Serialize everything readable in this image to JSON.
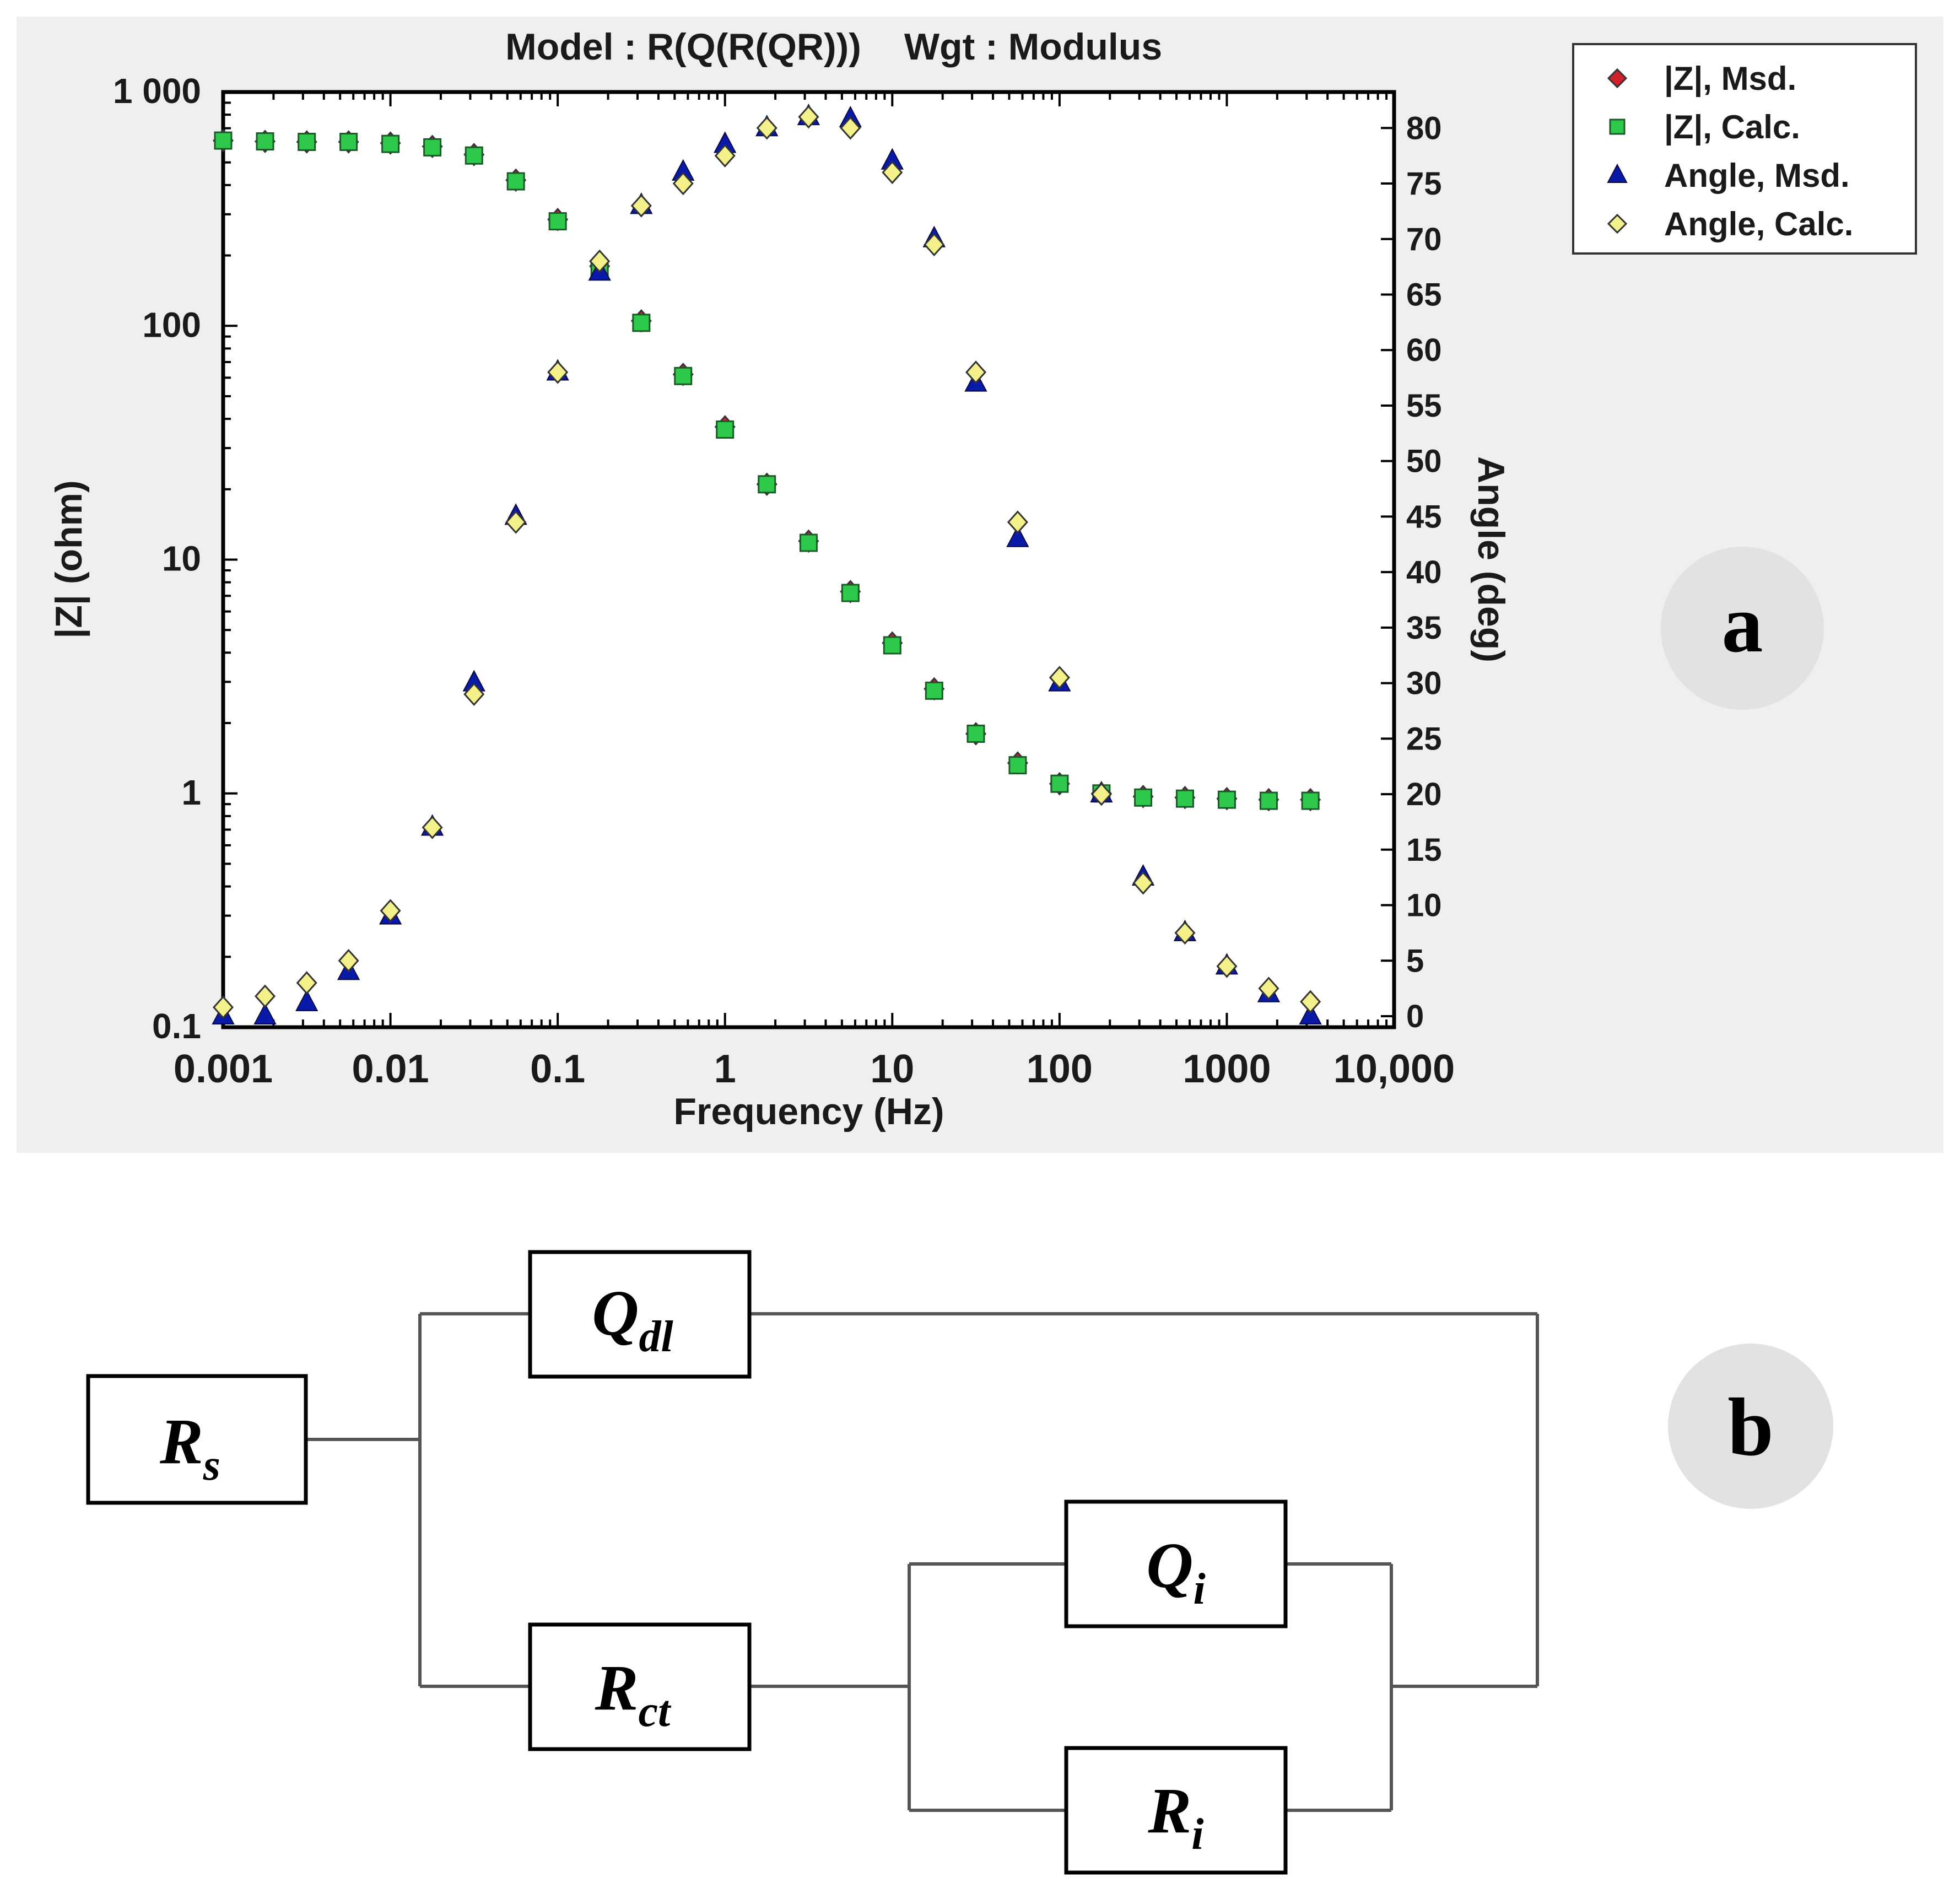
{
  "panel_a": {
    "label": "a",
    "model_text": "Model : R(Q(R(QR)))",
    "weight_text": "Wgt : Modulus",
    "legend": [
      {
        "label": "|Z|,  Msd.",
        "marker": "diamond",
        "color": "#d0202a"
      },
      {
        "label": "|Z|,  Calc.",
        "marker": "square",
        "color": "#2ec94a"
      },
      {
        "label": "Angle,  Msd.",
        "marker": "triangle",
        "color": "#0a1aa8"
      },
      {
        "label": "Angle,  Calc.",
        "marker": "diamond",
        "color": "#f4f08a"
      }
    ],
    "colors": {
      "plot_bg": "#ffffff",
      "panel_bg": "#efefef",
      "z_msd": "#d0202a",
      "z_calc": "#2ec94a",
      "angle_msd": "#0a1aa8",
      "angle_calc": "#f4f08a"
    }
  },
  "chart_data": {
    "type": "scatter",
    "xlabel": "Frequency  (Hz)",
    "ylabel": "|Z|  (ohm)",
    "y2label": "Angle  (deg)",
    "xscale": "log",
    "yscale": "log",
    "xlim": [
      0.001,
      10000
    ],
    "ylim": [
      0.1,
      1000
    ],
    "y2lim": [
      0,
      82
    ],
    "grid": false,
    "legend_position": "top-right (outside plot)",
    "x_tick_labels": [
      "0.001",
      "0.01",
      "0.1",
      "1",
      "10",
      "100",
      "1000",
      "10,000"
    ],
    "x_ticks": [
      0.001,
      0.01,
      0.1,
      1,
      10,
      100,
      1000,
      10000
    ],
    "y_tick_labels": [
      "0.1",
      "1",
      "10",
      "100",
      "1 000"
    ],
    "y_ticks": [
      0.1,
      1,
      10,
      100,
      1000
    ],
    "y2_ticks": [
      0,
      5,
      10,
      15,
      20,
      25,
      30,
      35,
      40,
      45,
      50,
      55,
      60,
      65,
      70,
      75,
      80
    ],
    "x": [
      0.001,
      0.00178,
      0.00316,
      0.00562,
      0.01,
      0.0178,
      0.0316,
      0.0562,
      0.1,
      0.178,
      0.316,
      0.562,
      1.0,
      1.78,
      3.16,
      5.62,
      10.0,
      17.8,
      31.6,
      56.2,
      100,
      178,
      316,
      562,
      1000,
      1780,
      3160
    ],
    "series": [
      {
        "name": "|Z|,  Msd.",
        "axis": "left",
        "values": [
          620,
          615,
          612,
          612,
          605,
          585,
          540,
          420,
          285,
          180,
          105,
          62,
          37,
          21,
          12,
          7.3,
          4.4,
          2.8,
          1.8,
          1.35,
          1.1,
          1.0,
          0.97,
          0.96,
          0.95,
          0.94,
          0.94
        ]
      },
      {
        "name": "|Z|,  Calc.",
        "axis": "left",
        "values": [
          620,
          615,
          612,
          612,
          600,
          580,
          535,
          415,
          280,
          175,
          103,
          61,
          36,
          21,
          11.8,
          7.2,
          4.3,
          2.75,
          1.8,
          1.32,
          1.1,
          1.0,
          0.96,
          0.95,
          0.94,
          0.93,
          0.93
        ]
      },
      {
        "name": "Angle,  Msd.",
        "axis": "right",
        "values": [
          0,
          0,
          1.2,
          4,
          9,
          17,
          30,
          45,
          58,
          67,
          73,
          76,
          78.5,
          80,
          81,
          80.8,
          77,
          70,
          57,
          43,
          30,
          20,
          12.5,
          7.5,
          4.5,
          2,
          0
        ]
      },
      {
        "name": "Angle,  Calc.",
        "axis": "right",
        "values": [
          0.8,
          1.8,
          3,
          5,
          9.5,
          17,
          29,
          44.5,
          58,
          68,
          73,
          75,
          77.5,
          80,
          81,
          80,
          76,
          69.5,
          58,
          44.5,
          30.5,
          20,
          12,
          7.5,
          4.5,
          2.5,
          1.3
        ]
      }
    ]
  },
  "panel_b": {
    "label": "b",
    "components": {
      "rs": {
        "main": "R",
        "sub": "s"
      },
      "qdl": {
        "main": "Q",
        "sub": "dl"
      },
      "rct": {
        "main": "R",
        "sub": "ct"
      },
      "qi": {
        "main": "Q",
        "sub": "i"
      },
      "ri": {
        "main": "R",
        "sub": "i"
      }
    }
  }
}
